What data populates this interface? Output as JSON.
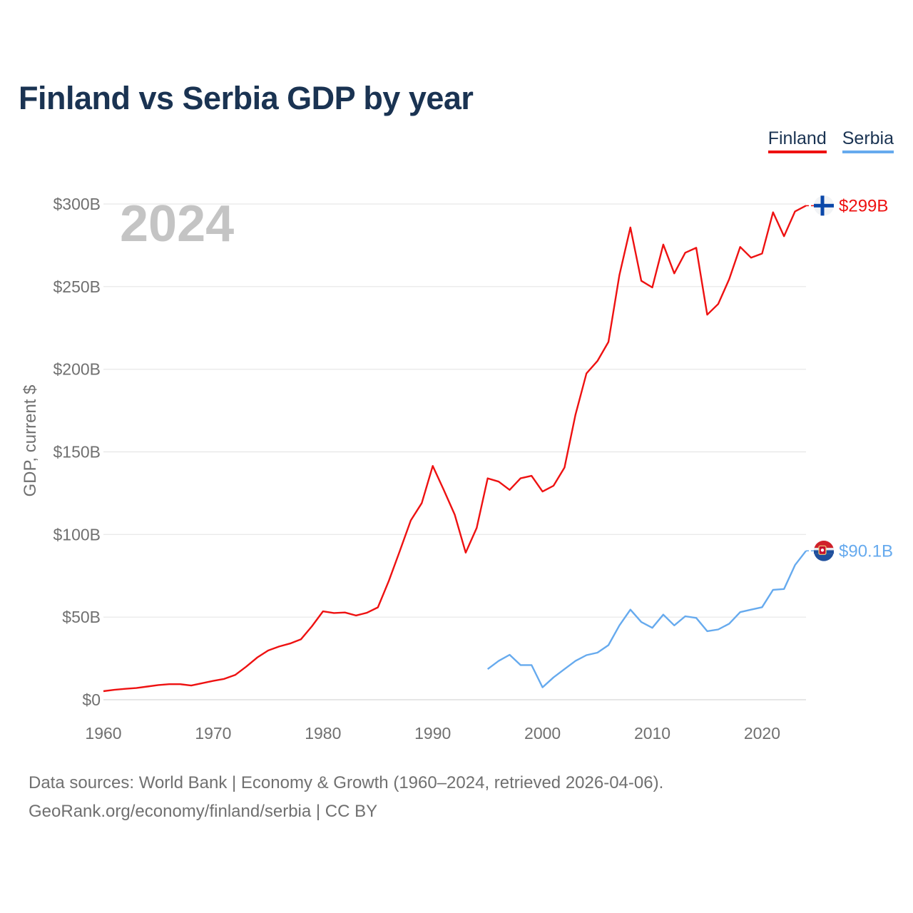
{
  "title": "Finland vs Serbia GDP by year",
  "year_label": "2024",
  "legend": [
    {
      "name": "Finland",
      "color": "#ee1111"
    },
    {
      "name": "Serbia",
      "color": "#66aaee"
    }
  ],
  "footer": {
    "source": "Data sources: World Bank | Economy & Growth (1960–2024, retrieved 2026-04-06).",
    "credit": "GeoRank.org/economy/finland/serbia | CC BY"
  },
  "chart_data": {
    "type": "line",
    "title": "Finland vs Serbia GDP by year",
    "ylabel": "GDP, current $",
    "xlabel": "",
    "xlim": [
      1960,
      2024
    ],
    "ylim": [
      0,
      300
    ],
    "y_unit": "billion USD",
    "x_ticks": [
      1960,
      1970,
      1980,
      1990,
      2000,
      2010,
      2020
    ],
    "x_tick_labels": [
      "1960",
      "1970",
      "1980",
      "1990",
      "2000",
      "2010",
      "2020"
    ],
    "y_ticks": [
      0,
      50,
      100,
      150,
      200,
      250,
      300
    ],
    "y_tick_labels": [
      "$0",
      "$50B",
      "$100B",
      "$150B",
      "$200B",
      "$250B",
      "$300B"
    ],
    "grid": true,
    "series": [
      {
        "name": "Finland",
        "color": "#ee1111",
        "end_label": "$299B",
        "flag": "finland-flag",
        "x": [
          1960,
          1961,
          1962,
          1963,
          1964,
          1965,
          1966,
          1967,
          1968,
          1969,
          1970,
          1971,
          1972,
          1973,
          1974,
          1975,
          1976,
          1977,
          1978,
          1979,
          1980,
          1981,
          1982,
          1983,
          1984,
          1985,
          1986,
          1987,
          1988,
          1989,
          1990,
          1991,
          1992,
          1993,
          1994,
          1995,
          1996,
          1997,
          1998,
          1999,
          2000,
          2001,
          2002,
          2003,
          2004,
          2005,
          2006,
          2007,
          2008,
          2009,
          2010,
          2011,
          2012,
          2013,
          2014,
          2015,
          2016,
          2017,
          2018,
          2019,
          2020,
          2021,
          2022,
          2023,
          2024
        ],
        "values": [
          5.2,
          6.0,
          6.6,
          7.1,
          8.0,
          8.9,
          9.4,
          9.4,
          8.6,
          10.0,
          11.4,
          12.6,
          15.0,
          20.0,
          25.5,
          29.8,
          32.2,
          34.0,
          36.6,
          44.5,
          53.5,
          52.5,
          52.8,
          51.0,
          52.6,
          55.9,
          72.0,
          90.0,
          108.5,
          119.0,
          141.5,
          127.0,
          112.0,
          89.0,
          104.0,
          134.0,
          132.0,
          127.0,
          134.0,
          135.5,
          126.0,
          129.5,
          140.5,
          172.5,
          197.5,
          205.0,
          216.5,
          257.0,
          285.8,
          253.5,
          249.5,
          275.5,
          258.0,
          270.5,
          273.5,
          233.0,
          239.5,
          254.5,
          274.0,
          267.5,
          270.0,
          295.0,
          280.5,
          295.5,
          299.0
        ]
      },
      {
        "name": "Serbia",
        "color": "#66aaee",
        "end_label": "$90.1B",
        "flag": "serbia-flag",
        "x": [
          1995,
          1996,
          1997,
          1998,
          1999,
          2000,
          2001,
          2002,
          2003,
          2004,
          2005,
          2006,
          2007,
          2008,
          2009,
          2010,
          2011,
          2012,
          2013,
          2014,
          2015,
          2016,
          2017,
          2018,
          2019,
          2020,
          2021,
          2022,
          2023,
          2024
        ],
        "values": [
          18.5,
          23.5,
          27.2,
          21.0,
          21.0,
          7.5,
          13.5,
          18.5,
          23.5,
          27.0,
          28.5,
          33.0,
          45.0,
          54.5,
          47.0,
          43.5,
          51.5,
          45.0,
          50.5,
          49.5,
          41.5,
          42.5,
          46.0,
          53.0,
          54.5,
          56.0,
          66.5,
          67.0,
          81.5,
          90.1
        ]
      }
    ]
  }
}
